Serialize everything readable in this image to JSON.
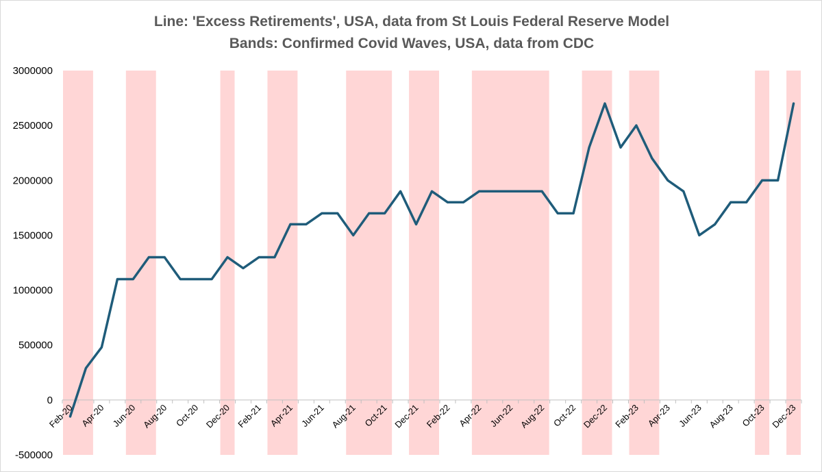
{
  "chart_data": {
    "type": "line",
    "title": "Line: 'Excess Retirements', USA, data from St Louis Federal Reserve Model",
    "subtitle": "Bands: Confirmed Covid Waves, USA, data from CDC",
    "xlabel": "",
    "ylabel": "",
    "ylim": [
      -500000,
      3000000
    ],
    "ytick_values": [
      -500000,
      0,
      500000,
      1000000,
      1500000,
      2000000,
      2500000,
      3000000
    ],
    "ytick_labels": [
      "-500000",
      "0",
      "500000",
      "1000000",
      "1500000",
      "2000000",
      "2500000",
      "3000000"
    ],
    "grid": false,
    "categories": [
      "Feb-20",
      "Mar-20",
      "Apr-20",
      "May-20",
      "Jun-20",
      "Jul-20",
      "Aug-20",
      "Sep-20",
      "Oct-20",
      "Nov-20",
      "Dec-20",
      "Jan-21",
      "Feb-21",
      "Mar-21",
      "Apr-21",
      "May-21",
      "Jun-21",
      "Jul-21",
      "Aug-21",
      "Sep-21",
      "Oct-21",
      "Nov-21",
      "Dec-21",
      "Jan-22",
      "Feb-22",
      "Mar-22",
      "Apr-22",
      "May-22",
      "Jun-22",
      "Jul-22",
      "Aug-22",
      "Sep-22",
      "Oct-22",
      "Nov-22",
      "Dec-22",
      "Jan-23",
      "Feb-23",
      "Mar-23",
      "Apr-23",
      "May-23",
      "Jun-23",
      "Jul-23",
      "Aug-23",
      "Sep-23",
      "Oct-23",
      "Nov-23",
      "Dec-23"
    ],
    "x_tick_labels": [
      "Feb-20",
      "Apr-20",
      "Jun-20",
      "Aug-20",
      "Oct-20",
      "Dec-20",
      "Feb-21",
      "Apr-21",
      "Jun-21",
      "Aug-21",
      "Oct-21",
      "Dec-21",
      "Feb-22",
      "Apr-22",
      "Jun-22",
      "Aug-22",
      "Oct-22",
      "Dec-22",
      "Feb-23",
      "Apr-23",
      "Jun-23",
      "Aug-23",
      "Oct-23",
      "Dec-23"
    ],
    "series": [
      {
        "values": [
          -150000,
          290000,
          480000,
          1100000,
          1100000,
          1300000,
          1300000,
          1100000,
          1100000,
          1100000,
          1300000,
          1200000,
          1300000,
          1300000,
          1600000,
          1600000,
          1700000,
          1700000,
          1500000,
          1700000,
          1700000,
          1900000,
          1600000,
          1900000,
          1800000,
          1800000,
          1900000,
          1900000,
          1900000,
          1900000,
          1900000,
          1700000,
          1700000,
          2300000,
          2700000,
          2300000,
          2500000,
          2200000,
          2000000,
          1900000,
          1500000,
          1600000,
          1800000,
          1800000,
          2000000,
          2000000,
          2700000
        ],
        "color": "#1f5c7a"
      }
    ],
    "bands": [
      {
        "from": "Feb-20",
        "to": "Mar-20"
      },
      {
        "from": "Jun-20",
        "to": "Jul-20"
      },
      {
        "from": "Dec-20",
        "to": "Dec-20"
      },
      {
        "from": "Mar-21",
        "to": "Apr-21"
      },
      {
        "from": "Aug-21",
        "to": "Oct-21"
      },
      {
        "from": "Dec-21",
        "to": "Jan-22"
      },
      {
        "from": "Apr-22",
        "to": "Aug-22"
      },
      {
        "from": "Nov-22",
        "to": "Dec-22"
      },
      {
        "from": "Feb-23",
        "to": "Mar-23"
      },
      {
        "from": "Oct-23",
        "to": "Oct-23"
      },
      {
        "from": "Dec-23",
        "to": "Dec-23"
      }
    ],
    "band_color": "#ffd6d6"
  }
}
